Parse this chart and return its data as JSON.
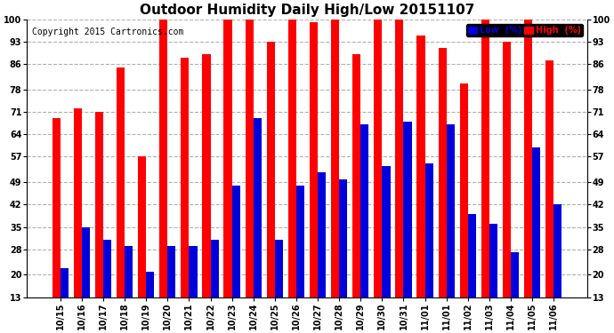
{
  "title": "Outdoor Humidity Daily High/Low 20151107",
  "copyright": "Copyright 2015 Cartronics.com",
  "categories": [
    "10/15",
    "10/16",
    "10/17",
    "10/18",
    "10/19",
    "10/20",
    "10/21",
    "10/22",
    "10/23",
    "10/24",
    "10/25",
    "10/26",
    "10/27",
    "10/28",
    "10/29",
    "10/30",
    "10/31",
    "11/01",
    "11/01",
    "11/02",
    "11/03",
    "11/04",
    "11/05",
    "11/06"
  ],
  "high_values": [
    69,
    72,
    71,
    85,
    57,
    100,
    88,
    89,
    100,
    100,
    93,
    100,
    99,
    100,
    89,
    100,
    100,
    95,
    91,
    80,
    100,
    93,
    100,
    87
  ],
  "low_values": [
    22,
    35,
    31,
    29,
    21,
    29,
    29,
    31,
    48,
    69,
    31,
    48,
    52,
    50,
    67,
    54,
    68,
    55,
    67,
    39,
    36,
    27,
    60,
    42
  ],
  "high_color": "#ff0000",
  "low_color": "#0000dd",
  "bg_color": "#ffffff",
  "plot_bg_color": "#ffffff",
  "grid_color": "#b0b0b0",
  "yticks": [
    13,
    20,
    28,
    35,
    42,
    49,
    57,
    64,
    71,
    78,
    86,
    93,
    100
  ],
  "ymin": 13,
  "ymax": 100,
  "legend_low_label": "Low  (%)",
  "legend_high_label": "High  (%)",
  "title_fontsize": 11,
  "copyright_fontsize": 7,
  "tick_fontsize": 7,
  "bar_width": 0.38
}
